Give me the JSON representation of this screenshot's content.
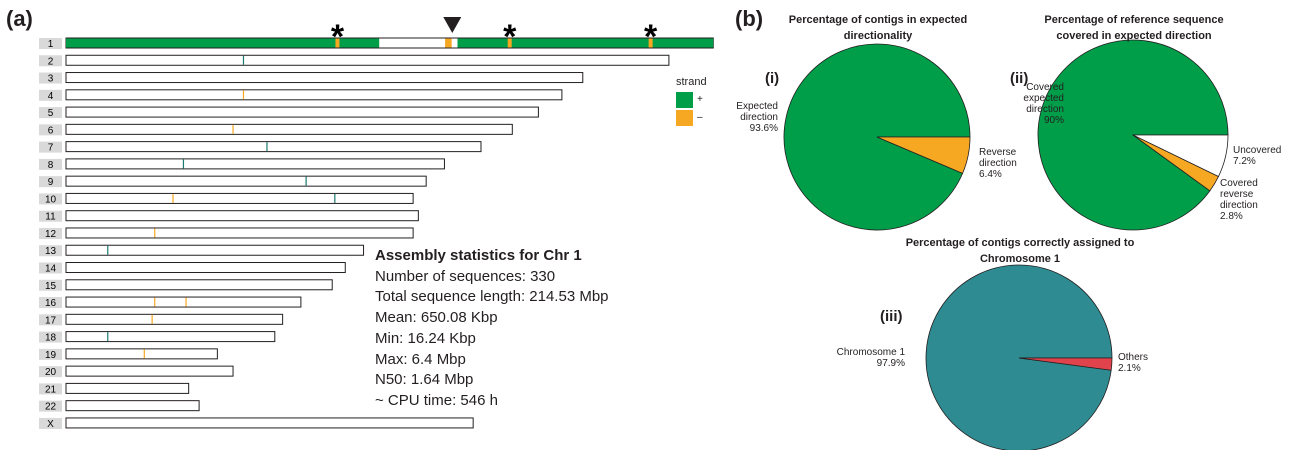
{
  "panel_a": {
    "label": "(a)",
    "scale_unit": "Mbp",
    "plus_color": "#009e49",
    "minus_color": "#f7a823",
    "chromosomes": [
      {
        "name": "1",
        "length": 248,
        "plus_segments": [
          [
            0,
            120
          ],
          [
            150,
            248
          ]
        ],
        "plus": [],
        "minus": [
          104,
          146,
          147,
          170,
          224
        ]
      },
      {
        "name": "2",
        "length": 231,
        "plus": [
          68
        ],
        "minus": []
      },
      {
        "name": "3",
        "length": 198,
        "plus": [],
        "minus": []
      },
      {
        "name": "4",
        "length": 190,
        "plus": [],
        "minus": [
          68
        ]
      },
      {
        "name": "5",
        "length": 181,
        "plus": [],
        "minus": []
      },
      {
        "name": "6",
        "length": 171,
        "plus": [],
        "minus": [
          64
        ]
      },
      {
        "name": "7",
        "length": 159,
        "plus": [
          77
        ],
        "minus": []
      },
      {
        "name": "8",
        "length": 145,
        "plus": [
          45
        ],
        "minus": []
      },
      {
        "name": "9",
        "length": 138,
        "plus": [
          92
        ],
        "minus": []
      },
      {
        "name": "10",
        "length": 133,
        "plus": [
          103
        ],
        "minus": [
          41
        ]
      },
      {
        "name": "11",
        "length": 135,
        "plus": [],
        "minus": []
      },
      {
        "name": "12",
        "length": 133,
        "plus": [],
        "minus": [
          34
        ]
      },
      {
        "name": "13",
        "length": 114,
        "plus": [
          16
        ],
        "minus": []
      },
      {
        "name": "14",
        "length": 107,
        "plus": [],
        "minus": []
      },
      {
        "name": "15",
        "length": 102,
        "plus": [],
        "minus": []
      },
      {
        "name": "16",
        "length": 90,
        "plus": [],
        "minus": [
          34,
          46
        ]
      },
      {
        "name": "17",
        "length": 83,
        "plus": [],
        "minus": [
          33
        ]
      },
      {
        "name": "18",
        "length": 80,
        "plus": [
          16
        ],
        "minus": []
      },
      {
        "name": "19",
        "length": 58,
        "plus": [],
        "minus": [
          30
        ]
      },
      {
        "name": "20",
        "length": 64,
        "plus": [],
        "minus": []
      },
      {
        "name": "21",
        "length": 47,
        "plus": [],
        "minus": []
      },
      {
        "name": "22",
        "length": 51,
        "plus": [],
        "minus": []
      },
      {
        "name": "X",
        "length": 156,
        "plus": [],
        "minus": []
      }
    ],
    "annotations": {
      "asterisk": "*",
      "asterisk_positions": [
        104,
        170,
        224
      ],
      "triangle": 148
    },
    "legend": {
      "title": "strand",
      "items": [
        "+",
        "–"
      ]
    },
    "stats": {
      "title": "Assembly statistics for Chr 1",
      "lines": [
        "Number of sequences: 330",
        "Total sequence length: 214.53 Mbp",
        "Mean: 650.08 Kbp",
        "Min: 16.24 Kbp",
        "Max: 6.4 Mbp",
        "N50: 1.64 Mbp",
        "~ CPU time: 546 h"
      ]
    }
  },
  "panel_b": {
    "label": "(b)"
  },
  "chart_data": [
    {
      "type": "pie",
      "panel": "(i)",
      "title": "Percentage of contigs in expected directionality",
      "categories": [
        "Expected direction",
        "Reverse direction"
      ],
      "values": [
        93.6,
        6.4
      ],
      "value_labels": [
        "93.6%",
        "6.4%"
      ],
      "colors": [
        "#009e49",
        "#f7a823"
      ]
    },
    {
      "type": "pie",
      "panel": "(ii)",
      "title": "Percentage of reference sequence covered in expected direction",
      "categories": [
        "Covered expected direction",
        "Covered reverse direction",
        "Uncovered"
      ],
      "values": [
        90,
        2.8,
        7.2
      ],
      "value_labels": [
        "90%",
        "2.8%",
        "7.2%"
      ],
      "colors": [
        "#009e49",
        "#f7a823",
        "#ffffff"
      ]
    },
    {
      "type": "pie",
      "panel": "(iii)",
      "title": "Percentage of contigs correctly assigned to Chromosome 1",
      "categories": [
        "Chromosome 1",
        "Others"
      ],
      "values": [
        97.9,
        2.1
      ],
      "value_labels": [
        "97.9%",
        "2.1%"
      ],
      "colors": [
        "#2e8b91",
        "#e0434b"
      ]
    }
  ]
}
